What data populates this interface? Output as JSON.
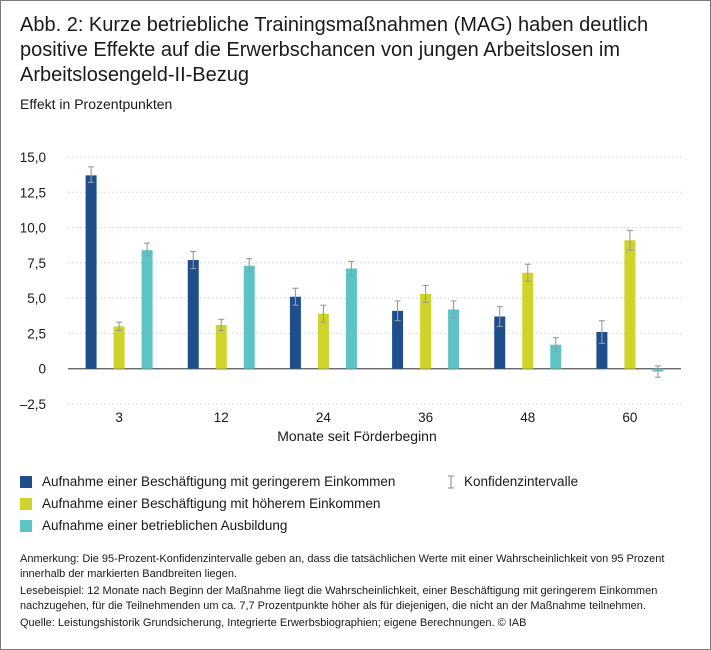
{
  "title": "Abb. 2: Kurze betriebliche Trainingsmaßnahmen (MAG) haben deutlich positive Effekte auf die Erwerbschancen von jungen Arbeitslosen im Arbeitslosengeld-II-Bezug",
  "subtitle": "Effekt in Prozentpunkten",
  "colors": {
    "series1": "#1f4e8c",
    "series2": "#cfd42a",
    "series3": "#5ec3c5",
    "ci": "#9a9a9a",
    "grid": "#cfcfcf"
  },
  "chart_data": {
    "type": "bar",
    "xlabel": "Monate seit Förderbeginn",
    "ylabel": "Effekt in Prozentpunkten",
    "categories": [
      "3",
      "12",
      "24",
      "36",
      "48",
      "60"
    ],
    "ylim": [
      -2.5,
      15
    ],
    "yticks": [
      15,
      12.5,
      10,
      7.5,
      5,
      2.5,
      0,
      -2.5
    ],
    "ytick_labels": [
      "15,0",
      "12,5",
      "10,0",
      "7,5",
      "5,0",
      "2,5",
      "0",
      "–2,5"
    ],
    "grid": true,
    "series": [
      {
        "name": "Aufnahme einer Beschäftigung mit geringerem Einkommen",
        "values": [
          13.7,
          7.7,
          5.1,
          4.1,
          3.7,
          2.6
        ],
        "ci_low": [
          13.2,
          7.1,
          4.5,
          3.4,
          3.0,
          1.8
        ],
        "ci_high": [
          14.3,
          8.3,
          5.7,
          4.8,
          4.4,
          3.4
        ]
      },
      {
        "name": "Aufnahme einer Beschäftigung mit höherem Einkommen",
        "values": [
          3.0,
          3.1,
          3.9,
          5.3,
          6.8,
          9.1
        ],
        "ci_low": [
          2.7,
          2.7,
          3.3,
          4.7,
          6.2,
          8.4
        ],
        "ci_high": [
          3.3,
          3.5,
          4.5,
          5.9,
          7.4,
          9.8
        ]
      },
      {
        "name": "Aufnahme einer betrieblichen Ausbildung",
        "values": [
          8.4,
          7.3,
          7.1,
          4.2,
          1.7,
          -0.2
        ],
        "ci_low": [
          8.0,
          6.9,
          6.6,
          3.6,
          1.2,
          -0.6
        ],
        "ci_high": [
          8.9,
          7.8,
          7.6,
          4.8,
          2.2,
          0.2
        ]
      }
    ],
    "ci_legend": "Konfidenzintervalle"
  },
  "notes": {
    "anmerkung": "Anmerkung: Die 95-Prozent-Konfidenzintervalle geben an, dass die tatsächlichen Werte mit einer Wahrscheinlichkeit von 95 Prozent innerhalb der markierten Bandbreiten liegen.",
    "lesebeispiel": "Lesebeispiel: 12 Monate nach Beginn der Maßnahme liegt die Wahrscheinlichkeit, einer Beschäftigung mit geringerem Einkommen nachzugehen, für die Teilnehmenden um ca. 7,7 Prozentpunkte höher als für diejenigen, die nicht an der Maßnahme teilnehmen.",
    "quelle": "Quelle: Leistungshistorik Grundsicherung, Integrierte Erwerbsbiographien; eigene Berechnungen. © IAB"
  }
}
